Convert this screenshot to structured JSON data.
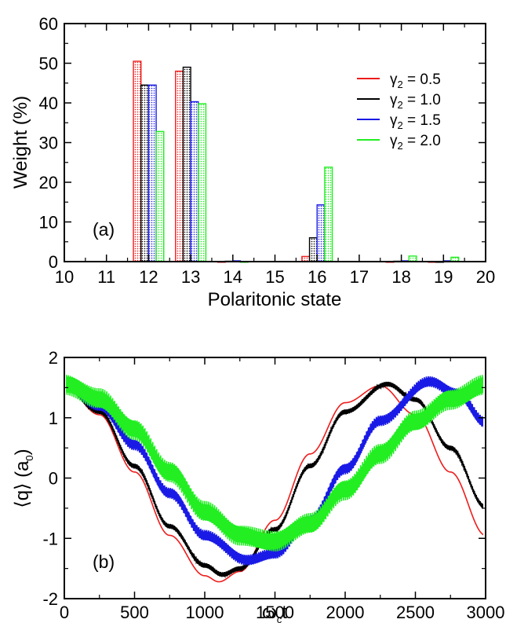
{
  "chart_data": [
    {
      "type": "bar",
      "panel_label": "(a)",
      "xlabel": "Polaritonic state",
      "ylabel": "Weight (%)",
      "xlim": [
        10,
        20
      ],
      "ylim": [
        0,
        60
      ],
      "xticks": [
        "10",
        "11",
        "12",
        "13",
        "14",
        "15",
        "16",
        "17",
        "18",
        "19",
        "20"
      ],
      "yticks": [
        "0",
        "10",
        "20",
        "30",
        "40",
        "50",
        "60"
      ],
      "legend_position": "right",
      "categories": [
        12,
        13,
        14,
        16,
        18,
        19
      ],
      "series": [
        {
          "legend_symbol": "γ",
          "legend_subscript": "2",
          "legend_value": " = 0.5",
          "color": "#ee1c1c",
          "values": [
            50.5,
            48.0,
            0.0,
            1.3,
            0.0,
            0.0
          ]
        },
        {
          "legend_symbol": "γ",
          "legend_subscript": "2",
          "legend_value": " = 1.0",
          "color": "#000000",
          "values": [
            44.5,
            49.0,
            0.1,
            6.0,
            0.1,
            0.0
          ]
        },
        {
          "legend_symbol": "γ",
          "legend_subscript": "2",
          "legend_value": " = 1.5",
          "color": "#1a1ae6",
          "values": [
            44.5,
            40.3,
            0.2,
            14.3,
            0.2,
            0.2
          ]
        },
        {
          "legend_symbol": "γ",
          "legend_subscript": "2",
          "legend_value": " = 2.0",
          "color": "#22ee22",
          "values": [
            32.8,
            39.8,
            0.0,
            23.8,
            1.4,
            1.1
          ]
        }
      ]
    },
    {
      "type": "line",
      "panel_label": "(b)",
      "xlabel_main": "ω",
      "xlabel_sub": "c",
      "xlabel_tail": "t",
      "ylabel_main": "⟨q⟩ (a",
      "ylabel_sub": "0",
      "ylabel_tail": ")",
      "xlim": [
        0,
        3000
      ],
      "ylim": [
        -2,
        2
      ],
      "xticks": [
        "0",
        "500",
        "1000",
        "1500",
        "2000",
        "2500",
        "3000"
      ],
      "yticks": [
        "-2",
        "-1",
        "0",
        "1",
        "2"
      ],
      "series": [
        {
          "legend_ref": "γ2 = 0.5",
          "color": "#ee1c1c",
          "amplitude": 1.62,
          "offset": -0.09,
          "start": 1.53,
          "period_hint": 2250,
          "oscillation": 0.0,
          "x": [
            0,
            250,
            500,
            750,
            1000,
            1100,
            1250,
            1500,
            1750,
            2000,
            2250,
            2500,
            2750,
            3000
          ],
          "y": [
            1.53,
            1.05,
            0.1,
            -0.95,
            -1.62,
            -1.72,
            -1.55,
            -0.7,
            0.4,
            1.25,
            1.53,
            1.05,
            0.1,
            -0.95
          ]
        },
        {
          "legend_ref": "γ2 = 1.0",
          "color": "#000000",
          "oscillation": 0.04,
          "x": [
            0,
            250,
            500,
            750,
            1000,
            1125,
            1250,
            1500,
            1750,
            2000,
            2300,
            2500,
            2750,
            3000
          ],
          "y": [
            1.53,
            1.1,
            0.2,
            -0.8,
            -1.45,
            -1.6,
            -1.5,
            -0.85,
            0.2,
            1.1,
            1.56,
            1.3,
            0.5,
            -0.48
          ]
        },
        {
          "legend_ref": "γ2 = 1.5",
          "color": "#1a1ae6",
          "oscillation": 0.09,
          "x": [
            0,
            250,
            500,
            750,
            1000,
            1300,
            1500,
            1750,
            2000,
            2250,
            2600,
            2800,
            3000
          ],
          "y": [
            1.53,
            1.2,
            0.55,
            -0.25,
            -0.95,
            -1.36,
            -1.25,
            -0.7,
            0.15,
            0.95,
            1.6,
            1.4,
            0.92
          ]
        },
        {
          "legend_ref": "γ2 = 2.0",
          "color": "#22ee22",
          "oscillation": 0.17,
          "x": [
            0,
            250,
            500,
            750,
            1000,
            1250,
            1500,
            1750,
            2000,
            2250,
            2500,
            2750,
            3000
          ],
          "y": [
            1.55,
            1.32,
            0.8,
            0.1,
            -0.55,
            -0.95,
            -1.05,
            -0.75,
            -0.2,
            0.4,
            0.95,
            1.3,
            1.55
          ]
        }
      ]
    }
  ]
}
